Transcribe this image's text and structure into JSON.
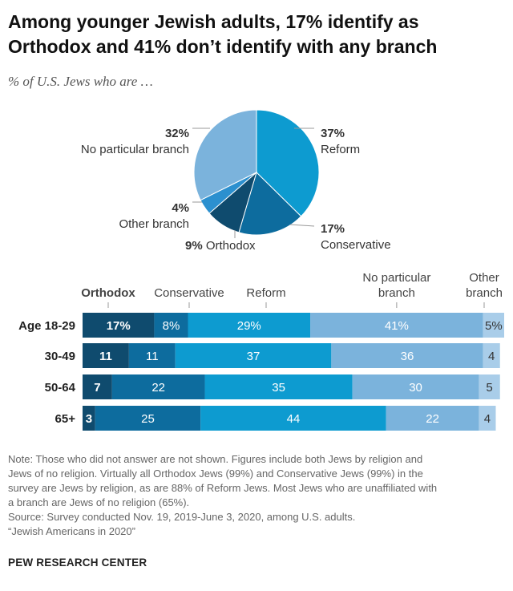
{
  "title": "Among younger Jewish adults, 17% identify as Orthodox and 41% don’t identify with any branch",
  "subtitle": "% of U.S. Jews who are …",
  "colors": {
    "orthodox": "#0f4b6e",
    "conservative": "#0d6c9e",
    "reform": "#0d9bd0",
    "none": "#7bb3dc",
    "other": "#a9cde9",
    "pie_other": "#2c90cf"
  },
  "chart_data": [
    {
      "type": "pie",
      "title": "% of U.S. Jews who are …",
      "slices": [
        {
          "name": "Reform",
          "value": 37,
          "value_label": "37%",
          "label": "Reform"
        },
        {
          "name": "Conservative",
          "value": 17,
          "value_label": "17%",
          "label": "Conservative"
        },
        {
          "name": "Orthodox",
          "value": 9,
          "value_label": "9%",
          "label": "Orthodox"
        },
        {
          "name": "Other branch",
          "value": 4,
          "value_label": "4%",
          "label": "Other branch"
        },
        {
          "name": "No particular branch",
          "value": 32,
          "value_label": "32%",
          "label": "No particular branch"
        }
      ]
    },
    {
      "type": "bar",
      "orientation": "horizontal",
      "stacked": true,
      "categories": [
        "Age 18-29",
        "30-49",
        "50-64",
        "65+"
      ],
      "series": [
        {
          "name": "Orthodox",
          "header": [
            "Orthodox"
          ],
          "values": [
            17,
            11,
            7,
            3
          ],
          "labels": [
            "17%",
            "11",
            "7",
            "3"
          ]
        },
        {
          "name": "Conservative",
          "header": [
            "Conservative"
          ],
          "values": [
            8,
            11,
            22,
            25
          ],
          "labels": [
            "8%",
            "11",
            "22",
            "25"
          ]
        },
        {
          "name": "Reform",
          "header": [
            "Reform"
          ],
          "values": [
            29,
            37,
            35,
            44
          ],
          "labels": [
            "29%",
            "37",
            "35",
            "44"
          ]
        },
        {
          "name": "No particular branch",
          "header": [
            "No particular",
            "branch"
          ],
          "values": [
            41,
            36,
            30,
            22
          ],
          "labels": [
            "41%",
            "36",
            "30",
            "22"
          ]
        },
        {
          "name": "Other branch",
          "header": [
            "Other",
            "branch"
          ],
          "values": [
            5,
            4,
            5,
            4
          ],
          "labels": [
            "5%",
            "4",
            "5",
            "4"
          ]
        }
      ],
      "xlim": [
        0,
        100
      ]
    }
  ],
  "notes": [
    "Note: Those who did not answer are not shown. Figures include both Jews by religion and",
    "Jews of no religion. Virtually all Orthodox Jews (99%) and Conservative Jews (99%) in the",
    "survey are Jews by religion, as are 88% of Reform Jews. Most Jews who are unaffiliated with",
    "a branch are Jews of no religion (65%).",
    "Source: Survey conducted Nov. 19, 2019-June 3, 2020, among U.S. adults.",
    "“Jewish Americans in 2020”"
  ],
  "org": "PEW RESEARCH CENTER"
}
